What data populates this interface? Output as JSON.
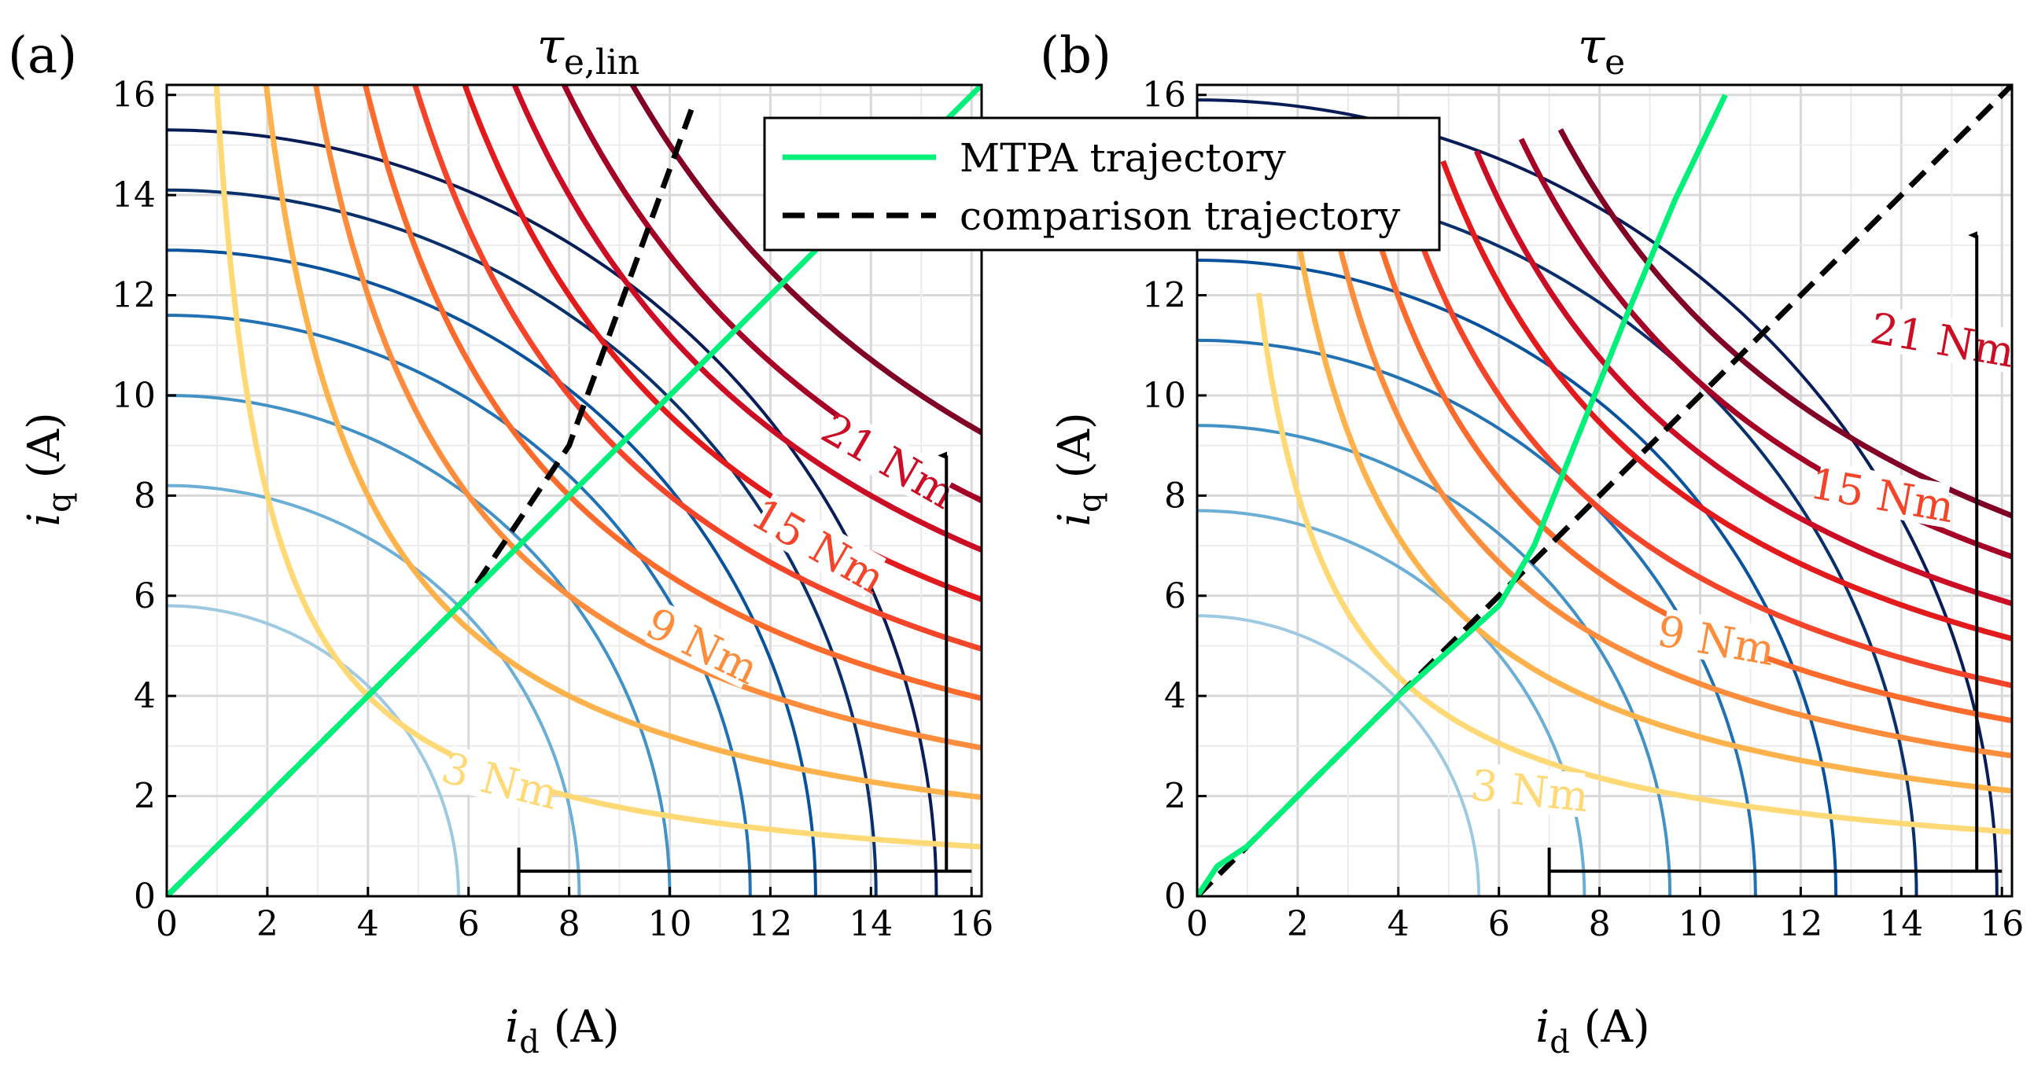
{
  "chart_data": [
    {
      "type": "line",
      "panel_label": "(a)",
      "title": {
        "symbol": "τ",
        "subscript": "e,lin"
      },
      "xlabel": {
        "symbol": "i",
        "subscript": "d",
        "unit": " (A)"
      },
      "ylabel": {
        "symbol": "i",
        "subscript": "q",
        "unit": " (A)"
      },
      "xlim": [
        0,
        16.2
      ],
      "ylim": [
        0,
        16.2
      ],
      "xticks": [
        "0",
        "2",
        "4",
        "6",
        "8",
        "10",
        "12",
        "14",
        "16"
      ],
      "yticks": [
        "0",
        "2",
        "4",
        "6",
        "8",
        "10",
        "12",
        "14",
        "16"
      ],
      "grid": true,
      "current_circles_radii": [
        5.8,
        8.2,
        10.0,
        11.6,
        12.9,
        14.1,
        15.3
      ],
      "torque_contours": [
        {
          "k": 16,
          "tag": "3 Nm"
        },
        {
          "k": 32
        },
        {
          "k": 48,
          "tag": "9 Nm"
        },
        {
          "k": 64
        },
        {
          "k": 80,
          "tag": "15 Nm"
        },
        {
          "k": 96
        },
        {
          "k": 112,
          "tag": "21 Nm"
        },
        {
          "k": 128
        },
        {
          "k": 150
        }
      ],
      "contour_labels": [
        {
          "text": "3 Nm",
          "x": 6.6,
          "y": 2.2,
          "angle": 14
        },
        {
          "text": "9 Nm",
          "x": 10.6,
          "y": 4.9,
          "angle": 26
        },
        {
          "text": "15 Nm",
          "x": 12.9,
          "y": 6.9,
          "angle": 30
        },
        {
          "text": "21 Nm",
          "x": 14.3,
          "y": 8.6,
          "angle": 30
        }
      ],
      "mtpa_trajectory": {
        "x": [
          0,
          16.2
        ],
        "y": [
          0,
          16.2
        ]
      },
      "comparison_trajectory": {
        "x": [
          0,
          4,
          6,
          8,
          10.5
        ],
        "y": [
          0,
          4,
          6,
          9,
          15.9
        ]
      },
      "annotation": {
        "bracket": {
          "x0": 7.0,
          "x1": 16.0,
          "y": 0.5
        },
        "arrow": {
          "x": 15.5,
          "y0": 0.5,
          "y1": 8.8
        }
      }
    },
    {
      "type": "line",
      "panel_label": "(b)",
      "title": {
        "symbol": "τ",
        "subscript": "e"
      },
      "xlabel": {
        "symbol": "i",
        "subscript": "d",
        "unit": " (A)"
      },
      "ylabel": {
        "symbol": "i",
        "subscript": "q",
        "unit": " (A)"
      },
      "xlim": [
        0,
        16.2
      ],
      "ylim": [
        0,
        16.2
      ],
      "xticks": [
        "0",
        "2",
        "4",
        "6",
        "8",
        "10",
        "12",
        "14",
        "16"
      ],
      "yticks": [
        "0",
        "2",
        "4",
        "6",
        "8",
        "10",
        "12",
        "14",
        "16"
      ],
      "grid": true,
      "current_circles_radii": [
        5.6,
        7.7,
        9.4,
        11.1,
        12.7,
        14.3,
        15.9
      ],
      "torque_contours": [
        {
          "k": 22,
          "tag": "3 Nm"
        },
        {
          "k": 36
        },
        {
          "k": 48,
          "tag": "9 Nm"
        },
        {
          "k": 60
        },
        {
          "k": 72,
          "tag": "15 Nm"
        },
        {
          "k": 88
        },
        {
          "k": 100,
          "tag": "21 Nm"
        },
        {
          "k": 116
        },
        {
          "k": 130
        }
      ],
      "contour_labels": [
        {
          "text": "3 Nm",
          "x": 6.6,
          "y": 2.0,
          "angle": 6
        },
        {
          "text": "9 Nm",
          "x": 10.3,
          "y": 5.0,
          "angle": 10
        },
        {
          "text": "15 Nm",
          "x": 13.6,
          "y": 7.9,
          "angle": 10
        },
        {
          "text": "21 Nm",
          "x": 14.8,
          "y": 11.0,
          "angle": 10
        }
      ],
      "mtpa_trajectory": {
        "x": [
          0,
          0.4,
          1,
          2,
          3,
          4,
          5,
          6,
          6.7,
          7.5,
          8.5,
          9.5,
          10.5
        ],
        "y": [
          0,
          0.6,
          1,
          2,
          3,
          4,
          4.9,
          5.8,
          7.0,
          9.0,
          11.5,
          13.9,
          16.0
        ]
      },
      "comparison_trajectory": {
        "x": [
          0,
          16.2
        ],
        "y": [
          0,
          16.2
        ]
      },
      "annotation": {
        "bracket": {
          "x0": 7.0,
          "x1": 16.0,
          "y": 0.5
        },
        "arrow": {
          "x": 15.5,
          "y0": 0.5,
          "y1": 13.2
        }
      }
    }
  ],
  "legend": {
    "entries": [
      {
        "label": "MTPA trajectory",
        "color": "#00f07a",
        "style": "solid"
      },
      {
        "label": "comparison trajectory",
        "color": "#000000",
        "style": "dashed"
      }
    ]
  },
  "colors": {
    "mtpa": "#00f07a",
    "circles": [
      "#9ecae1",
      "#6baed6",
      "#4292c6",
      "#2171b5",
      "#08519c",
      "#08306b",
      "#081d58"
    ],
    "torque": [
      "#fed976",
      "#feb24c",
      "#fd8d3c",
      "#fc6a2c",
      "#f4442a",
      "#e31a1c",
      "#cb0e26",
      "#a50026",
      "#800026"
    ]
  }
}
